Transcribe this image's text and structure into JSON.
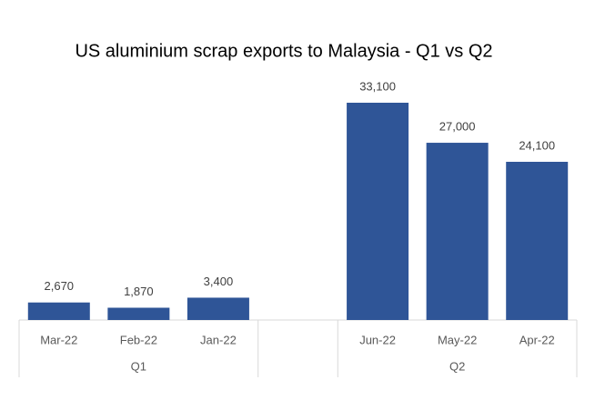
{
  "chart_data": {
    "type": "bar",
    "title": "US aluminium scrap exports to Malaysia - Q1 vs Q2",
    "categories": [
      "Mar-22",
      "Feb-22",
      "Jan-22",
      null,
      "Jun-22",
      "May-22",
      "Apr-22"
    ],
    "group_labels": [
      "Q1",
      "Q1",
      "Q1",
      null,
      "Q2",
      "Q2",
      "Q2"
    ],
    "values": [
      2670,
      1870,
      3400,
      null,
      33100,
      27000,
      24100
    ],
    "value_labels": [
      "2,670",
      "1,870",
      "3,400",
      null,
      "33,100",
      "27,000",
      "24,100"
    ],
    "color": "#2f5597"
  }
}
